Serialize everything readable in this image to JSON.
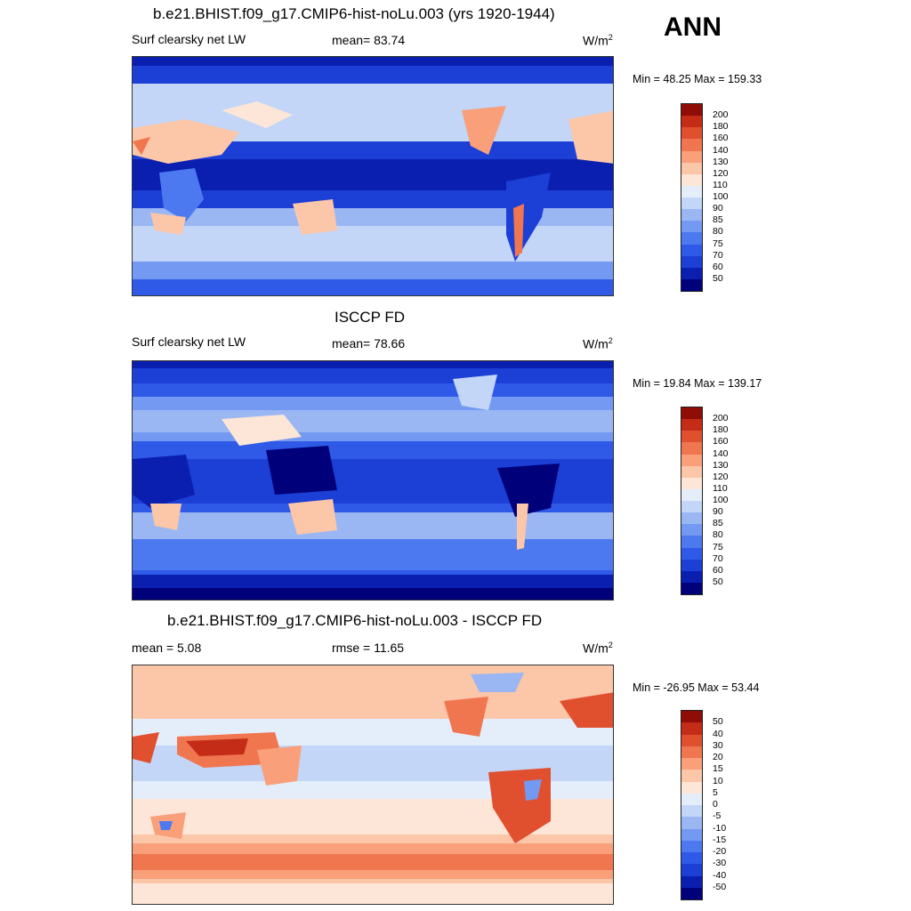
{
  "season": "ANN",
  "panels": [
    {
      "title": "b.e21.BHIST.f09_g17.CMIP6-hist-noLu.003 (yrs 1920-1944)",
      "left_label": "Surf clearsky net LW",
      "center_label": "mean=  83.74",
      "units": "W/m",
      "units_sup": "2",
      "minmax": "Min =  48.25 Max = 159.33"
    },
    {
      "title": "ISCCP FD",
      "left_label": "Surf clearsky net LW",
      "center_label": "mean=  78.66",
      "units": "W/m",
      "units_sup": "2",
      "minmax": "Min =  19.84 Max = 139.17"
    },
    {
      "title": "b.e21.BHIST.f09_g17.CMIP6-hist-noLu.003 - ISCCP FD",
      "left_label": "mean =   5.08",
      "center_label": "rmse =  11.65",
      "units": "W/m",
      "units_sup": "2",
      "minmax": "Min = -26.95 Max =  53.44"
    }
  ],
  "chart_data": [
    {
      "type": "heatmap",
      "title": "b.e21.BHIST.f09_g17.CMIP6-hist-noLu.003 (yrs 1920-1944)",
      "variable": "Surf clearsky net LW",
      "units": "W/m2",
      "mean": 83.74,
      "min": 48.25,
      "max": 159.33,
      "colorbar_levels": [
        50,
        60,
        70,
        75,
        80,
        85,
        90,
        100,
        110,
        120,
        130,
        140,
        160,
        180,
        200
      ],
      "colorbar_colors": [
        "#00007a",
        "#0a1fb0",
        "#1c3fd6",
        "#2f5ae8",
        "#4d79f0",
        "#7399f2",
        "#9ab7f4",
        "#c3d6f7",
        "#e4eefa",
        "#fde6d7",
        "#fcc6a8",
        "#f9a07b",
        "#f07650",
        "#e0502f",
        "#c42c18",
        "#8f0d06"
      ]
    },
    {
      "type": "heatmap",
      "title": "ISCCP FD",
      "variable": "Surf clearsky net LW",
      "units": "W/m2",
      "mean": 78.66,
      "min": 19.84,
      "max": 139.17,
      "colorbar_levels": [
        50,
        60,
        70,
        75,
        80,
        85,
        90,
        100,
        110,
        120,
        130,
        140,
        160,
        180,
        200
      ],
      "colorbar_colors": [
        "#00007a",
        "#0a1fb0",
        "#1c3fd6",
        "#2f5ae8",
        "#4d79f0",
        "#7399f2",
        "#9ab7f4",
        "#c3d6f7",
        "#e4eefa",
        "#fde6d7",
        "#fcc6a8",
        "#f9a07b",
        "#f07650",
        "#e0502f",
        "#c42c18",
        "#8f0d06"
      ]
    },
    {
      "type": "heatmap",
      "title": "b.e21.BHIST.f09_g17.CMIP6-hist-noLu.003 - ISCCP FD",
      "units": "W/m2",
      "mean": 5.08,
      "rmse": 11.65,
      "min": -26.95,
      "max": 53.44,
      "colorbar_levels": [
        -50,
        -40,
        -30,
        -20,
        -15,
        -10,
        -5,
        0,
        5,
        10,
        15,
        20,
        30,
        40,
        50
      ],
      "colorbar_colors": [
        "#00007a",
        "#0a1fb0",
        "#1c3fd6",
        "#2f5ae8",
        "#4d79f0",
        "#7399f2",
        "#9ab7f4",
        "#c3d6f7",
        "#e4eefa",
        "#fde6d7",
        "#fcc6a8",
        "#f9a07b",
        "#f07650",
        "#e0502f",
        "#c42c18",
        "#8f0d06"
      ]
    }
  ]
}
